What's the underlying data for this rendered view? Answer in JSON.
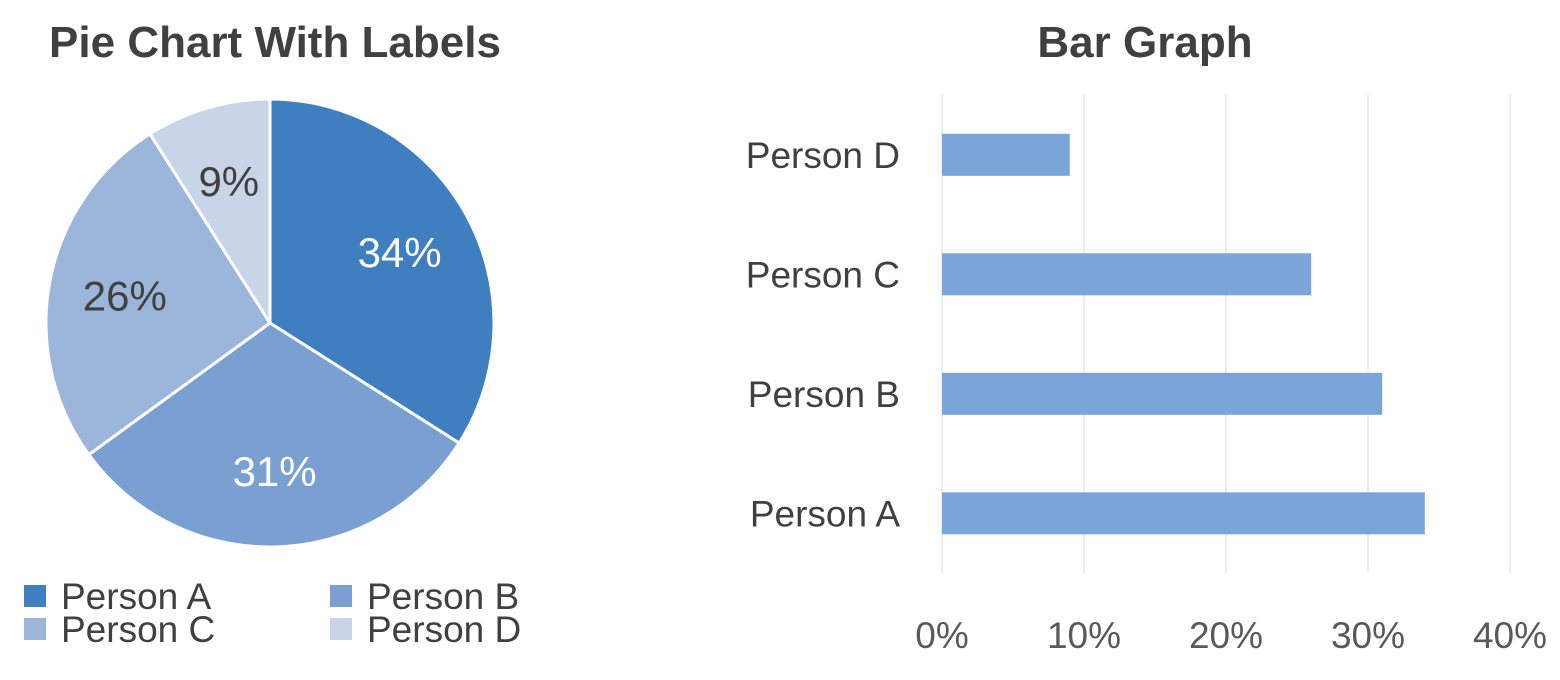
{
  "chart_data": [
    {
      "type": "pie",
      "title": "Pie Chart With Labels",
      "categories": [
        "Person A",
        "Person B",
        "Person C",
        "Person D"
      ],
      "values": [
        34,
        31,
        26,
        9
      ],
      "data_labels": [
        "34%",
        "31%",
        "26%",
        "9%"
      ],
      "colors": [
        "#3f7fc0",
        "#7aa0d2",
        "#9cb5da",
        "#c8d5e9"
      ],
      "label_colors": [
        "#ffffff",
        "#ffffff",
        "#404040",
        "#404040"
      ],
      "legend": "bottom"
    },
    {
      "type": "bar",
      "orientation": "horizontal",
      "title": "Bar Graph",
      "categories": [
        "Person A",
        "Person B",
        "Person C",
        "Person D"
      ],
      "values": [
        34,
        31,
        26,
        9
      ],
      "xlim": [
        0,
        40
      ],
      "xticks": [
        "0%",
        "10%",
        "20%",
        "30%",
        "40%"
      ],
      "bar_color": "#7aa5d8",
      "grid": "vertical"
    }
  ]
}
